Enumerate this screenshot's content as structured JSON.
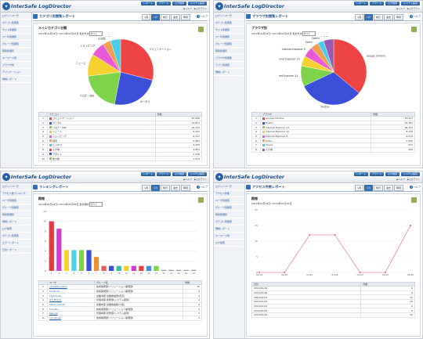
{
  "app": {
    "logo_text": "InterSafe LogDirector",
    "top_buttons": [
      "レポート",
      "アラート",
      "ログ検索",
      "システム設定"
    ],
    "top_links": [
      "▶ヘルプ",
      "▶ログアウト"
    ],
    "help_label": "ヘルプ",
    "tabs": [
      "1週",
      "1月",
      "前日",
      "過去",
      "時間"
    ]
  },
  "panels": [
    {
      "title": "カテゴリ別閲覧レポート",
      "active_tab": 1,
      "sidebar": [
        "ログインユーザ",
        "カテゴリ別閲覧",
        "サイト別閲覧",
        "ユーザ別閲覧",
        "グループ別閲覧",
        "時間別閲覧",
        "キーワード別",
        "ブラウザ別",
        "アプリケーション",
        "規制レポート"
      ],
      "box_title": "メインカテゴリ分類",
      "range_text": "2014年01月19日〜2014年01月25日",
      "select_label": "集計方法",
      "select_value": "すべて",
      "chart_data": {
        "type": "pie",
        "categories": [
          "コミュニケーション",
          "ポータル",
          "ブログ・SNS",
          "ニュース",
          "ショッピング",
          "その他",
          "アダルト"
        ],
        "values": [
          29,
          24,
          20,
          11,
          7,
          4,
          5
        ],
        "colors": [
          "#ef4444",
          "#3b4fd8",
          "#7ed34a",
          "#f5d130",
          "#e858d8",
          "#f0a050",
          "#45cfe8"
        ]
      },
      "table": {
        "headers": [
          "",
          "カテゴリ",
          "件数"
        ],
        "rows": [
          [
            "1",
            "コミュニケーション",
            "25,356"
          ],
          [
            "2",
            "ポータル",
            "22,871"
          ],
          [
            "3",
            "ブログ・SNS",
            "16,141"
          ],
          [
            "4",
            "ニュース",
            "9,102"
          ],
          [
            "5",
            "ショッピング",
            "8,317"
          ],
          [
            "6",
            "検索",
            "5,481"
          ],
          [
            "7",
            "ビジネス",
            "4,205"
          ],
          [
            "8",
            "その他",
            "3,861"
          ],
          [
            "9",
            "アダルト",
            "2,178"
          ],
          [
            "10",
            "未分類",
            "1,973"
          ]
        ]
      }
    },
    {
      "title": "ブラウザ別閲覧レポート",
      "active_tab": 1,
      "sidebar": [
        "ログインユーザ",
        "カテゴリ別閲覧",
        "サイト別閲覧",
        "ユーザ別閲覧",
        "グループ別閲覧",
        "時間別閲覧",
        "ブラウザ別閲覧",
        "アプリ別閲覧",
        "規制レポート"
      ],
      "box_title": "ブラウザ別",
      "range_text": "2014年01月19日〜2014年01月25日",
      "select_label": "集計方法",
      "select_value": "すべて",
      "chart_data": {
        "type": "pie",
        "categories": [
          "Google Chrome",
          "Firefox",
          "Internet Explorer 11",
          "Internet Explorer 10",
          "Internet Explorer 9",
          "Safari",
          "Opera",
          "その他"
        ],
        "values": [
          36,
          32,
          10,
          5,
          5,
          4,
          3,
          5
        ],
        "colors": [
          "#ef4444",
          "#3b4fd8",
          "#7ed34a",
          "#f5d130",
          "#e858d8",
          "#f0a050",
          "#45cfe8",
          "#9b59b6"
        ]
      },
      "table": {
        "headers": [
          "",
          "ブラウザ",
          "件数"
        ],
        "rows": [
          [
            "1",
            "Google Chrome",
            "33,417"
          ],
          [
            "2",
            "Firefox",
            "29,361"
          ],
          [
            "3",
            "Internet Explorer 11",
            "16,151"
          ],
          [
            "4",
            "Internet Explorer 10",
            "8,136"
          ],
          [
            "5",
            "Internet Explorer 9",
            "4,214"
          ],
          [
            "6",
            "Safari",
            "1,365"
          ],
          [
            "7",
            "Opera",
            "571"
          ],
          [
            "8",
            "その他",
            "406"
          ]
        ]
      }
    },
    {
      "title": "ランキングレポート",
      "active_tab": 1,
      "sidebar": [
        "ログインユーザ",
        "アクセス数ランキング",
        "ユーザ別閲覧",
        "グループ別閲覧",
        "時間別閲覧",
        "規制レポート",
        "ログ検索",
        "カテゴリ別閲覧",
        "エラーレポート",
        "日次レポート"
      ],
      "box_title": "期間",
      "range_text": "2014年01月19日〜2014年01月25日",
      "select_label": "集計期間",
      "select_value": "すべて",
      "chart_data": {
        "type": "bar",
        "categories": [
          "1",
          "2",
          "3",
          "4",
          "5",
          "6",
          "7",
          "8",
          "9",
          "10",
          "11",
          "12",
          "13",
          "14",
          "15",
          "16",
          "17",
          "18",
          "19",
          "20"
        ],
        "values": [
          10.0,
          8.5,
          4.2,
          4.2,
          4.2,
          4.2,
          2.8,
          1.0,
          1.0,
          1.0,
          1.0,
          1.0,
          1.0,
          1.0,
          1.0,
          0.2,
          0.2,
          0.2,
          0.2,
          0.2
        ],
        "colors": [
          "#e53b3b",
          "#d13ad1",
          "#f5d130",
          "#4fd2e8",
          "#7ed34a",
          "#3b4fd8",
          "#f08f2f",
          "#e55a5a",
          "#3b4fd8",
          "#2ec0a0",
          "#f5d130",
          "#d13ad1",
          "#e53b3b",
          "#3b8fd8",
          "#7ed34a",
          "#999999",
          "#999999",
          "#999999",
          "#999999",
          "#999999"
        ],
        "ylim": [
          0,
          12
        ],
        "yticks": [
          "0",
          "2",
          "4",
          "6",
          "8",
          "10",
          "12"
        ]
      },
      "table": {
        "headers": [
          "",
          "ユーザ",
          "グループ名",
          "件数"
        ],
        "rows": [
          [
            "1",
            "yamada-suzuki",
            "技術開発部(ソリューション開発部)",
            "10"
          ],
          [
            "2",
            "hiroki-ta",
            "技術開発部(ソリューション開発部)",
            "9"
          ],
          [
            "3",
            "kiyoshi-ito",
            "営業本部 営業推進部(東京)",
            "4"
          ],
          [
            "4",
            "HT_TEST-1",
            "管理本部 総務部(システム運用)",
            "4"
          ],
          [
            "5",
            "satoru-suzuki",
            "営業本部 営業推進部(大阪)",
            "4"
          ],
          [
            "6",
            "tomoki-i",
            "技術開発部(ソリューション開発部)",
            "4"
          ],
          [
            "7",
            "taku-ta",
            "管理本部 総務部(システム運用)",
            "3"
          ],
          [
            "8",
            "ryo-ishida",
            "技術開発部(ソリューション開発部)",
            "1"
          ]
        ]
      }
    },
    {
      "title": "アクセス件数レポート",
      "active_tab": 1,
      "sidebar": [
        "ログインユーザ",
        "アクセス件数",
        "ユーザ別閲覧",
        "グループ別閲覧",
        "時間別閲覧",
        "カテゴリ別閲覧",
        "規制レポート",
        "キーワード別",
        "ログ検索"
      ],
      "box_title": "期間",
      "range_text": "2014年01月19日〜2014年01月25日",
      "select_label": "",
      "select_value": "",
      "chart_data": {
        "type": "line",
        "categories": [
          "01/19",
          "01/20",
          "01/21",
          "01/22",
          "01/23",
          "01/24",
          "01/25"
        ],
        "values": [
          0,
          0,
          12,
          12,
          0,
          0,
          15
        ],
        "color": "#e85c6a",
        "ylim": [
          0,
          20
        ],
        "yticks": [
          "0",
          "5",
          "10",
          "15",
          "20"
        ]
      },
      "table": {
        "headers": [
          "日付",
          "件数"
        ],
        "rows": [
          [
            "2014/01/19",
            "0"
          ],
          [
            "2014/01/20",
            "0"
          ],
          [
            "2014/01/21",
            "12"
          ],
          [
            "2014/01/22",
            "12"
          ],
          [
            "2014/01/23",
            "0"
          ],
          [
            "2014/01/24",
            "0"
          ],
          [
            "2014/01/25",
            "15"
          ]
        ]
      }
    }
  ]
}
